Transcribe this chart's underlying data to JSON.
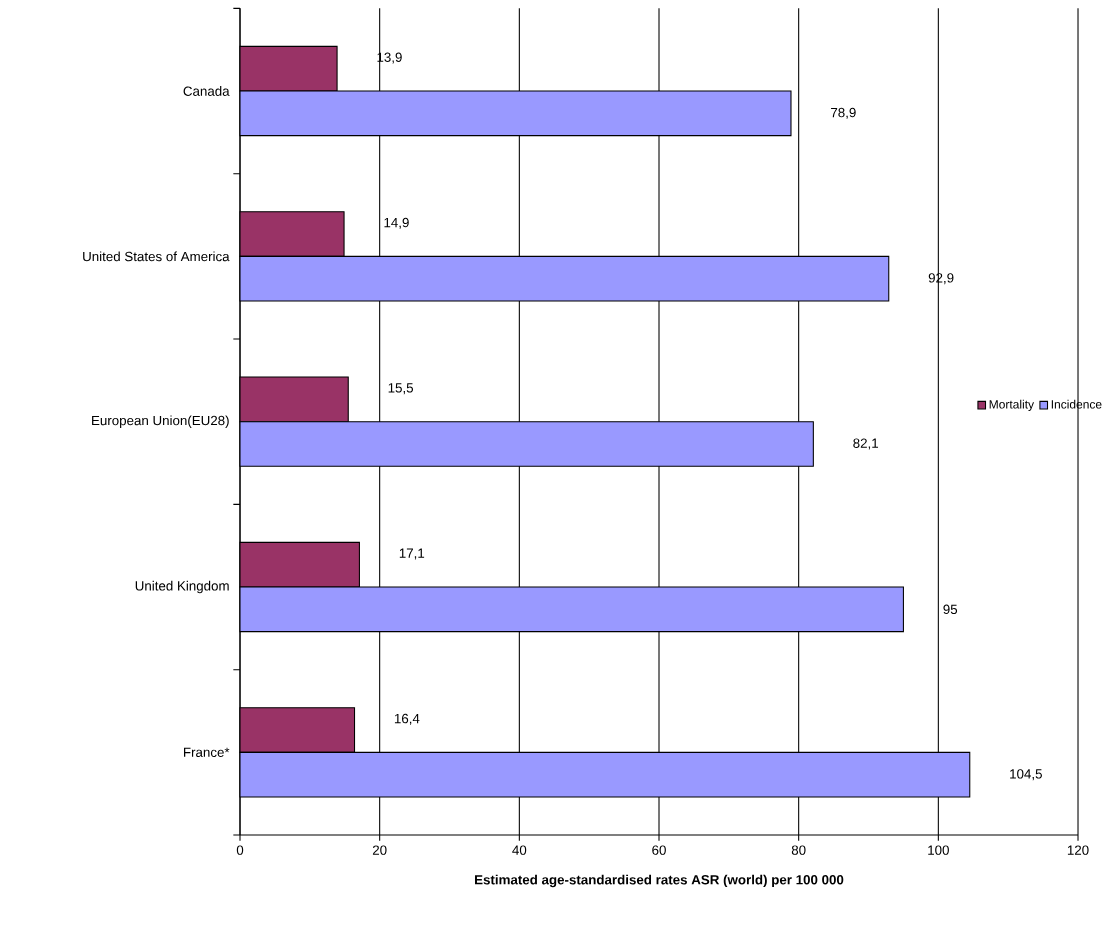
{
  "chart_data": {
    "type": "bar",
    "orientation": "horizontal",
    "xlabel": "Estimated age-standardised rates  ASR (world) per 100 000",
    "categories": [
      "Canada",
      "United States of America",
      "European Union(EU28)",
      "United Kingdom",
      "France*"
    ],
    "series": [
      {
        "name": "Mortality",
        "color": "#993366",
        "values": [
          13.9,
          14.9,
          15.5,
          17.1,
          16.4
        ],
        "value_labels": [
          "13,9",
          "14,9",
          "15,5",
          "17,1",
          "16,4"
        ]
      },
      {
        "name": "Incidence",
        "color": "#9999ff",
        "values": [
          78.9,
          92.9,
          82.1,
          95,
          104.5
        ],
        "value_labels": [
          "78,9",
          "92,9",
          "82,1",
          "95",
          "104,5"
        ]
      }
    ],
    "xlim": [
      0,
      120
    ],
    "xticks": [
      0,
      20,
      40,
      60,
      80,
      100,
      120
    ],
    "grid": "x",
    "legend": "right"
  }
}
